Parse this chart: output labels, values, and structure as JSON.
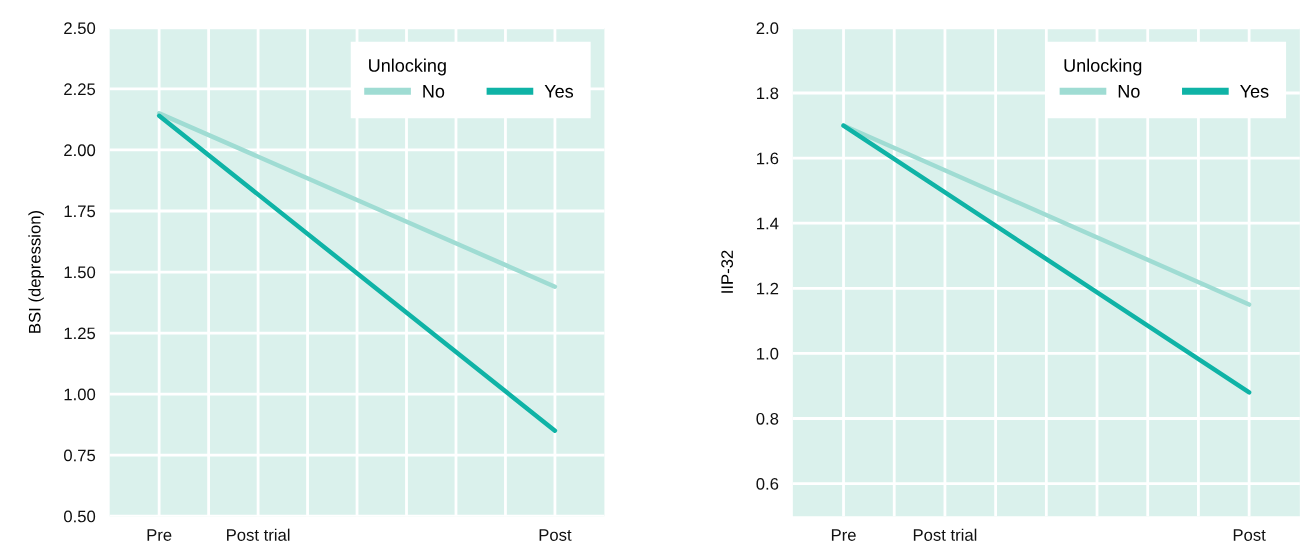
{
  "chart_data": [
    {
      "type": "line",
      "ylabel": "BSI (depression)",
      "legend_title": "Unlocking",
      "legend": "top right",
      "grid": true,
      "line_style": "solid",
      "marker": "none",
      "categories": [
        "Pre",
        null,
        "Post trial",
        null,
        null,
        null,
        null,
        null,
        "Post"
      ],
      "ylim": [
        0.5,
        2.5
      ],
      "yticks": [
        {
          "value": 0.5,
          "label": "0.50"
        },
        {
          "value": 0.75,
          "label": "0.75"
        },
        {
          "value": 1.0,
          "label": "1.00"
        },
        {
          "value": 1.25,
          "label": "1.25"
        },
        {
          "value": 1.5,
          "label": "1.50"
        },
        {
          "value": 1.75,
          "label": "1.75"
        },
        {
          "value": 2.0,
          "label": "2.00"
        },
        {
          "value": 2.25,
          "label": "2.25"
        },
        {
          "value": 2.5,
          "label": "2.50"
        }
      ],
      "series": [
        {
          "name": "No",
          "color": "#9fdcd3",
          "values": [
            2.15,
            null,
            null,
            null,
            null,
            null,
            null,
            null,
            1.44
          ]
        },
        {
          "name": "Yes",
          "color": "#0fb3a6",
          "values": [
            2.14,
            null,
            null,
            null,
            null,
            null,
            null,
            null,
            0.85
          ]
        }
      ]
    },
    {
      "type": "line",
      "ylabel": "IIP-32",
      "legend_title": "Unlocking",
      "legend": "top right",
      "grid": true,
      "line_style": "solid",
      "marker": "none",
      "categories": [
        "Pre",
        null,
        "Post trial",
        null,
        null,
        null,
        null,
        null,
        "Post"
      ],
      "ylim": [
        0.5,
        2.0
      ],
      "yticks": [
        {
          "value": 0.6,
          "label": "0.6"
        },
        {
          "value": 0.8,
          "label": "0.8"
        },
        {
          "value": 1.0,
          "label": "1.0"
        },
        {
          "value": 1.2,
          "label": "1.2"
        },
        {
          "value": 1.4,
          "label": "1.4"
        },
        {
          "value": 1.6,
          "label": "1.6"
        },
        {
          "value": 1.8,
          "label": "1.8"
        },
        {
          "value": 2.0,
          "label": "2.0"
        }
      ],
      "series": [
        {
          "name": "No",
          "color": "#9fdcd3",
          "values": [
            1.7,
            null,
            null,
            null,
            null,
            null,
            null,
            null,
            1.15
          ]
        },
        {
          "name": "Yes",
          "color": "#0fb3a6",
          "values": [
            1.7,
            null,
            null,
            null,
            null,
            null,
            null,
            null,
            0.88
          ]
        }
      ]
    }
  ]
}
